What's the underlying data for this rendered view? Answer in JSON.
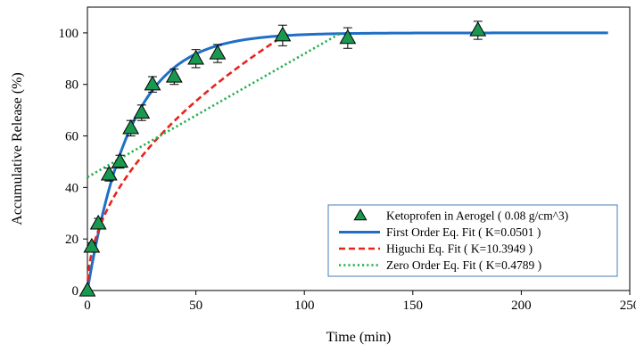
{
  "chart_data": {
    "type": "scatter",
    "xlabel": "Time (min)",
    "ylabel": "Accumulative Release (%)",
    "xlim": [
      0,
      250
    ],
    "ylim": [
      0,
      110
    ],
    "x_ticks": [
      0,
      50,
      100,
      150,
      200,
      250
    ],
    "y_ticks": [
      0,
      20,
      40,
      60,
      80,
      100
    ],
    "grid": false,
    "legend_position": "bottom-right",
    "series": [
      {
        "name": "Ketoprofen in Aerogel ( 0.08 g/cm^3)",
        "kind": "markers-with-errorbars",
        "marker": "triangle",
        "color": "#1a9850",
        "edge_color": "#000000",
        "x": [
          0,
          2,
          5,
          10,
          15,
          20,
          25,
          30,
          40,
          50,
          60,
          90,
          120,
          180
        ],
        "y": [
          0,
          17,
          26,
          45,
          50,
          63,
          69,
          80,
          83,
          90,
          92,
          99,
          98,
          101
        ],
        "error": [
          0,
          1.5,
          2,
          2.5,
          2.5,
          3,
          3,
          3,
          3,
          3.5,
          3.5,
          4,
          4,
          3.5
        ]
      },
      {
        "name": "First Order Eq. Fit ( K=0.0501 )",
        "kind": "line",
        "style": "solid",
        "color": "#1f6fc5",
        "model": "first_order",
        "k": 0.0501,
        "x_range": [
          0,
          240
        ]
      },
      {
        "name": "Higuchi Eq. Fit ( K=10.3949 )",
        "kind": "line",
        "style": "dashed",
        "color": "#e8231d",
        "model": "higuchi",
        "k": 10.3949,
        "x_range": [
          0,
          92
        ]
      },
      {
        "name": "Zero Order Eq. Fit ( K=0.4789 )",
        "kind": "line",
        "style": "dotted",
        "color": "#22b04b",
        "model": "zero_order",
        "k": 0.4789,
        "intercept": 44,
        "x_range": [
          0,
          117
        ]
      }
    ]
  }
}
